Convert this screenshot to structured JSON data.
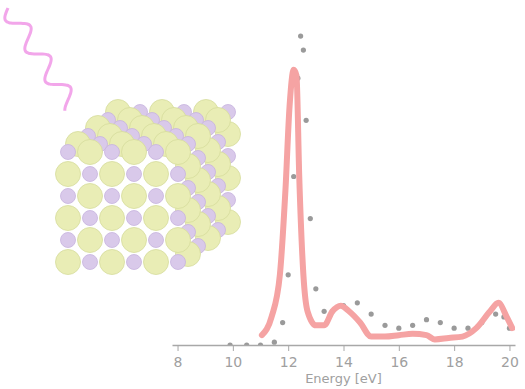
{
  "chart_data": {
    "type": "line",
    "xlabel": "Energy [eV]",
    "xlim": [
      7.8,
      20.2
    ],
    "xticks": [
      8,
      10,
      12,
      14,
      16,
      18,
      20
    ],
    "ylim": [
      0,
      1.15
    ],
    "tick_labels": "x",
    "grid": false,
    "series": [
      {
        "type": "scatter",
        "color": "#9a9a9a",
        "marker": "circle",
        "x": [
          9.9,
          10.5,
          11,
          11.5,
          11.8,
          12.0,
          12.2,
          12.35,
          12.45,
          12.55,
          12.65,
          12.8,
          13.0,
          13.3,
          13.6,
          14.0,
          14.5,
          15.0,
          15.5,
          16,
          16.5,
          17,
          17.5,
          18,
          18.5,
          19,
          19.5,
          19.8,
          20.0
        ],
        "values": [
          0,
          0,
          0,
          0.01,
          0.08,
          0.25,
          0.6,
          0.95,
          1.1,
          1.05,
          0.8,
          0.45,
          0.2,
          0.12,
          0.12,
          0.14,
          0.15,
          0.11,
          0.07,
          0.06,
          0.07,
          0.09,
          0.08,
          0.06,
          0.06,
          0.08,
          0.11,
          0.1,
          0.06
        ]
      },
      {
        "type": "line",
        "color": "#f5a3a3",
        "line_style": "solid",
        "x": [
          11.05,
          11.4,
          11.7,
          11.9,
          12.05,
          12.2,
          12.3,
          12.4,
          12.55,
          12.7,
          13.0,
          13.3,
          13.6,
          13.9,
          14.2,
          14.6,
          15,
          15.5,
          16,
          16.5,
          17,
          17.3,
          17.8,
          18.3,
          18.8,
          19.3,
          19.6,
          19.9,
          20.1
        ],
        "values": [
          0.035,
          0.1,
          0.25,
          0.55,
          0.85,
          0.98,
          0.96,
          0.6,
          0.25,
          0.12,
          0.07,
          0.07,
          0.12,
          0.14,
          0.12,
          0.08,
          0.03,
          0.03,
          0.035,
          0.04,
          0.035,
          0.02,
          0.025,
          0.03,
          0.06,
          0.12,
          0.15,
          0.1,
          0.06
        ]
      }
    ]
  }
}
